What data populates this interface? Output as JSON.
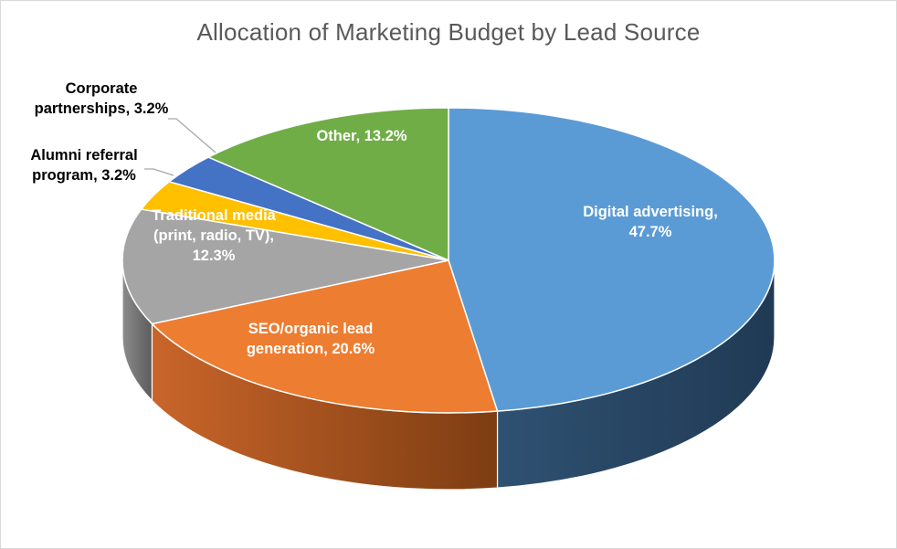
{
  "chart_data": {
    "type": "pie",
    "title": "Allocation of Marketing Budget by Lead Source",
    "three_d": true,
    "legend": "none",
    "slices": [
      {
        "name": "Digital advertising",
        "value": 47.7,
        "label_lines": [
          "Digital advertising,",
          "47.7%"
        ],
        "color": "#5b9bd5",
        "side_dark": "#203a54",
        "side_light": "#2f5172",
        "label_color": "#ffffff"
      },
      {
        "name": "SEO/organic lead generation",
        "value": 20.6,
        "label_lines": [
          "SEO/organic lead",
          "generation, 20.6%"
        ],
        "color": "#ed7d31",
        "side_dark": "#7d3d12",
        "side_light": "#c9652a",
        "label_color": "#ffffff"
      },
      {
        "name": "Traditional media (print, radio, TV)",
        "value": 12.3,
        "label_lines": [
          "Traditional media",
          "(print, radio, TV),",
          "12.3%"
        ],
        "color": "#a5a5a5",
        "side_dark": "#5c5c5c",
        "side_light": "#8c8c8c",
        "label_color": "#ffffff"
      },
      {
        "name": "Alumni referral program",
        "value": 3.2,
        "label_lines": [
          "Alumni referral",
          "program, 3.2%"
        ],
        "color": "#ffc000",
        "side_dark": "#7f6000",
        "side_light": "#bf9000",
        "label_color": "#000000"
      },
      {
        "name": "Corporate partnerships",
        "value": 3.2,
        "label_lines": [
          "Corporate",
          "partnerships, 3.2%"
        ],
        "color": "#4472c4",
        "side_dark": "#203864",
        "side_light": "#2f5597",
        "label_color": "#000000"
      },
      {
        "name": "Other",
        "value": 13.2,
        "label_lines": [
          "Other, 13.2%"
        ],
        "color": "#70ad47",
        "side_dark": "#375623",
        "side_light": "#548235",
        "label_color": "#ffffff"
      }
    ]
  }
}
